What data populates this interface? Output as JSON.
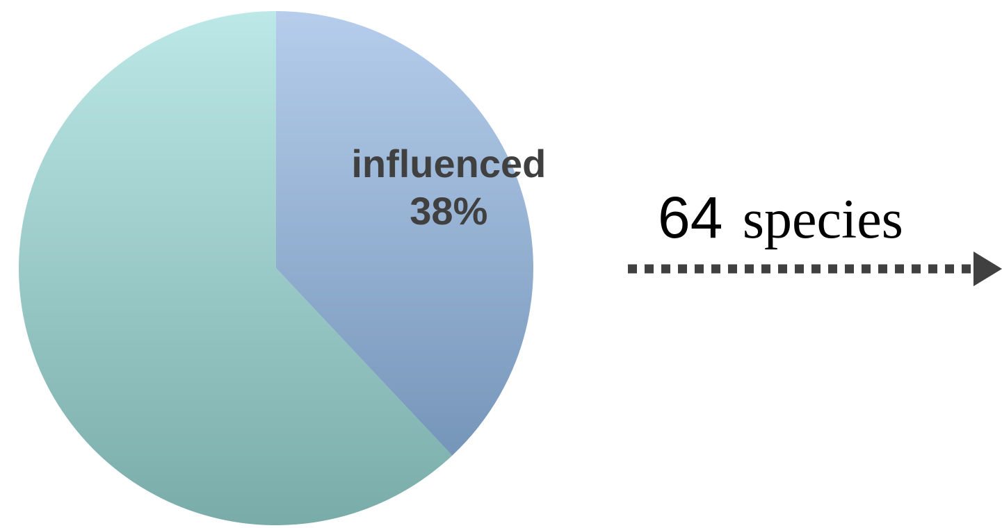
{
  "chart_data": {
    "type": "pie",
    "title": "",
    "slices": [
      {
        "label": "influenced",
        "percent_label": "38%",
        "value": 38,
        "color_top": "#b6cdec",
        "color_bottom": "#6b8db1"
      },
      {
        "label": "",
        "percent_label": "",
        "value": 62,
        "color_top": "#bce8e7",
        "color_bottom": "#79aca9"
      }
    ],
    "start_angle": "12 o'clock",
    "direction": "clockwise"
  },
  "annotation": {
    "count": "64",
    "unit": "species",
    "arrow_color": "#404040",
    "arrow_style": "dotted",
    "arrow_direction": "right"
  }
}
